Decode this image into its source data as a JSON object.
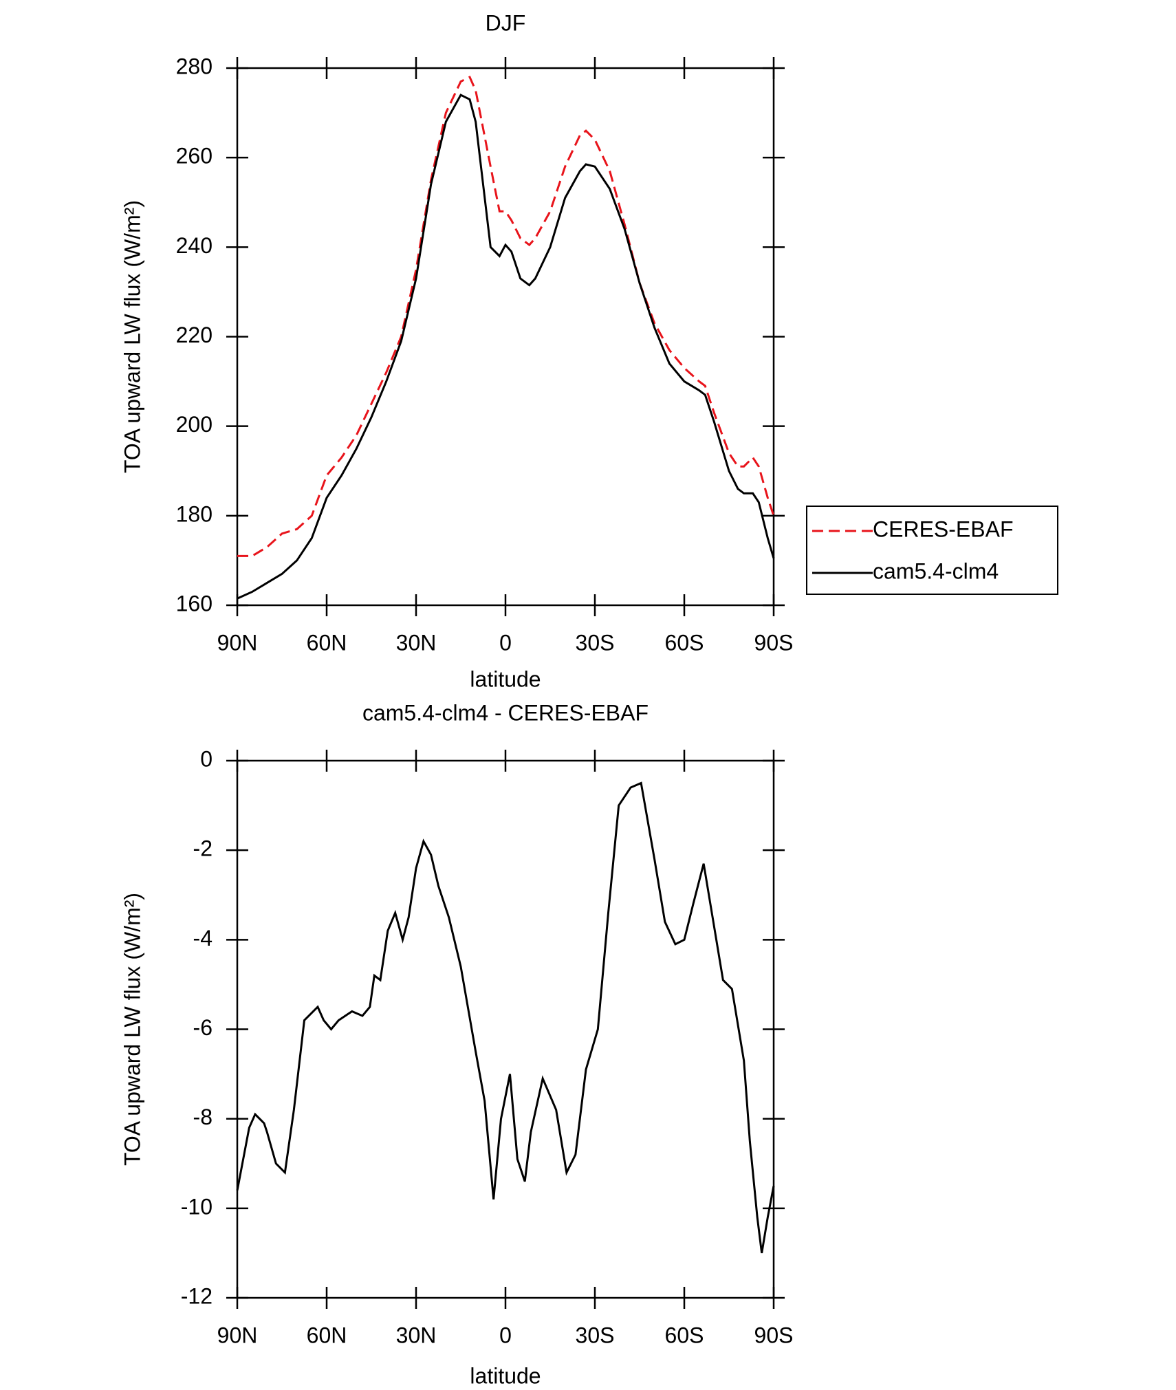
{
  "chart_data": [
    {
      "type": "line",
      "title": "DJF",
      "xlabel": "latitude",
      "ylabel": "TOA upward LW flux (W/m²)",
      "x": [
        90,
        85,
        80,
        75,
        70,
        65,
        60,
        55,
        50,
        45,
        40,
        35,
        30,
        25,
        20,
        15,
        12,
        10,
        5,
        2,
        0,
        -2,
        -5,
        -8,
        -10,
        -15,
        -20,
        -25,
        -27,
        -30,
        -35,
        -40,
        -45,
        -50,
        -55,
        -60,
        -65,
        -67,
        -70,
        -75,
        -78,
        -80,
        -83,
        -85,
        -88,
        -90
      ],
      "series": [
        {
          "name": "CERES-EBAF",
          "color": "#e8141b",
          "line_style": "dashed",
          "values": [
            171,
            171,
            173,
            176,
            177,
            180,
            189,
            193,
            198,
            205,
            212,
            220,
            235,
            255,
            270,
            277,
            278,
            275,
            258,
            248,
            248,
            246,
            242,
            240.5,
            242,
            248,
            258,
            265,
            266,
            264,
            257,
            245,
            232,
            223,
            217,
            213,
            210,
            209,
            203,
            194,
            191,
            191,
            193,
            191,
            184,
            180
          ]
        },
        {
          "name": "cam5.4-clm4",
          "color": "#000000",
          "line_style": "solid",
          "values": [
            161.5,
            163,
            165,
            167,
            170,
            175,
            184,
            189,
            195,
            202,
            210,
            219,
            233,
            254,
            268,
            274,
            273,
            268,
            240,
            238,
            240.5,
            239,
            233,
            231.5,
            233,
            240,
            251,
            257,
            258.5,
            258,
            253,
            244,
            232,
            222,
            214,
            210,
            208,
            207,
            201,
            190,
            186,
            185,
            185,
            183,
            175,
            170.5
          ]
        }
      ],
      "xlim": [
        90,
        -90
      ],
      "xticks": [
        {
          "value": 90,
          "label": "90N"
        },
        {
          "value": 60,
          "label": "60N"
        },
        {
          "value": 30,
          "label": "30N"
        },
        0,
        {
          "value": -30,
          "label": "30S"
        },
        {
          "value": -60,
          "label": "60S"
        },
        {
          "value": -90,
          "label": "90S"
        }
      ],
      "ylim": [
        160,
        280
      ],
      "yticks": [
        160,
        180,
        200,
        220,
        240,
        260,
        280
      ],
      "legend": "right"
    },
    {
      "type": "line",
      "title": "cam5.4-clm4 - CERES-EBAF",
      "xlabel": "latitude",
      "ylabel": "TOA upward LW flux (W/m²)",
      "x": [
        90,
        86,
        84,
        81,
        80,
        77,
        74,
        71,
        67.5,
        63,
        61,
        58.5,
        56,
        51.5,
        48,
        45.5,
        44,
        42,
        39.5,
        37,
        34.5,
        32.5,
        30,
        27.5,
        25,
        22.5,
        19,
        15,
        10,
        7,
        4,
        1.5,
        -1.5,
        -4,
        -6.5,
        -8.5,
        -12.5,
        -17,
        -20.5,
        -23.5,
        -27,
        -31,
        -34.5,
        -38,
        -42,
        -45.5,
        -50,
        -53.5,
        -57,
        -60,
        -63,
        -66.5,
        -69.5,
        -73,
        -76,
        -80,
        -82,
        -84.5,
        -86,
        -88,
        -90
      ],
      "series": [
        {
          "name": "cam5.4-clm4 - CERES-EBAF",
          "color": "#000000",
          "line_style": "solid",
          "values": [
            -9.6,
            -8.2,
            -7.9,
            -8.1,
            -8.3,
            -9.0,
            -9.2,
            -7.8,
            -5.8,
            -5.5,
            -5.8,
            -6.0,
            -5.8,
            -5.6,
            -5.7,
            -5.5,
            -4.8,
            -4.9,
            -3.8,
            -3.4,
            -4.0,
            -3.5,
            -2.4,
            -1.8,
            -2.1,
            -2.8,
            -3.5,
            -4.6,
            -6.5,
            -7.6,
            -9.8,
            -8.0,
            -7.0,
            -8.9,
            -9.4,
            -8.3,
            -7.1,
            -7.8,
            -9.2,
            -8.8,
            -6.9,
            -6.0,
            -3.4,
            -1.0,
            -0.6,
            -0.5,
            -2.2,
            -3.6,
            -4.1,
            -4.0,
            -3.2,
            -2.3,
            -3.5,
            -4.9,
            -5.1,
            -6.7,
            -8.5,
            -10.2,
            -11.0,
            -10.2,
            -9.5
          ]
        }
      ],
      "xlim": [
        90,
        -90
      ],
      "xticks": [
        {
          "value": 90,
          "label": "90N"
        },
        {
          "value": 60,
          "label": "60N"
        },
        {
          "value": 30,
          "label": "30N"
        },
        0,
        {
          "value": -30,
          "label": "30S"
        },
        {
          "value": -60,
          "label": "60S"
        },
        {
          "value": -90,
          "label": "90S"
        }
      ],
      "ylim": [
        -12,
        0
      ],
      "yticks": [
        -12,
        -10,
        -8,
        -6,
        -4,
        -2,
        0
      ]
    }
  ]
}
